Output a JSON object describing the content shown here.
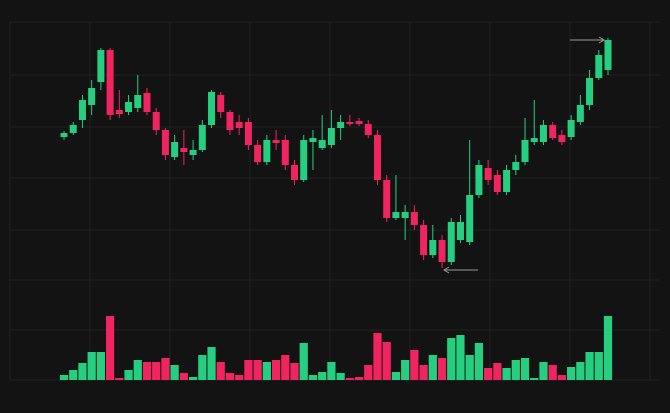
{
  "chart_data": {
    "type": "candlestick",
    "ylim": [
      0,
      280
    ],
    "volume_ylim": [
      0,
      100
    ],
    "up_color": "#26cf7f",
    "down_color": "#f0245f",
    "open": [
      153,
      157,
      170,
      185,
      208,
      240,
      180,
      178,
      182,
      197,
      178,
      160,
      133,
      142,
      135,
      140,
      165,
      195,
      178,
      168,
      168,
      145,
      128,
      150,
      150,
      125,
      110,
      148,
      142,
      145,
      162,
      168,
      169,
      166,
      155,
      110,
      72,
      72,
      78,
      65,
      35,
      50,
      28,
      50,
      48,
      95,
      122,
      115,
      98,
      120,
      128,
      148,
      148,
      165,
      155,
      153,
      168,
      185,
      212,
      220
    ],
    "high": [
      159,
      168,
      195,
      210,
      242,
      242,
      200,
      195,
      215,
      202,
      182,
      162,
      155,
      160,
      150,
      170,
      200,
      198,
      180,
      175,
      172,
      150,
      155,
      160,
      155,
      130,
      155,
      160,
      175,
      180,
      175,
      175,
      172,
      170,
      160,
      115,
      115,
      85,
      85,
      70,
      65,
      55,
      72,
      75,
      150,
      130,
      130,
      120,
      125,
      135,
      172,
      190,
      170,
      168,
      160,
      175,
      195,
      220,
      240,
      252
    ],
    "low": [
      150,
      155,
      162,
      175,
      200,
      170,
      172,
      175,
      178,
      175,
      155,
      130,
      130,
      125,
      130,
      138,
      162,
      172,
      155,
      155,
      140,
      125,
      125,
      140,
      120,
      105,
      108,
      120,
      140,
      142,
      150,
      164,
      164,
      152,
      105,
      68,
      70,
      50,
      60,
      30,
      32,
      22,
      25,
      47,
      45,
      92,
      105,
      95,
      95,
      115,
      125,
      145,
      145,
      150,
      145,
      150,
      165,
      180,
      210,
      215
    ],
    "close": [
      157,
      165,
      190,
      202,
      240,
      175,
      176,
      188,
      195,
      178,
      160,
      135,
      148,
      138,
      140,
      165,
      198,
      178,
      160,
      162,
      145,
      128,
      150,
      147,
      125,
      110,
      150,
      152,
      150,
      162,
      168,
      166,
      166,
      155,
      110,
      72,
      78,
      78,
      65,
      35,
      50,
      28,
      68,
      68,
      95,
      125,
      110,
      98,
      120,
      128,
      150,
      152,
      165,
      152,
      148,
      170,
      185,
      212,
      235,
      250
    ],
    "volume": [
      5,
      10,
      17,
      28,
      28,
      64,
      2,
      10,
      20,
      18,
      18,
      22,
      15,
      7,
      3,
      25,
      33,
      18,
      7,
      5,
      20,
      20,
      18,
      20,
      25,
      17,
      37,
      5,
      8,
      18,
      7,
      2,
      3,
      15,
      47,
      38,
      8,
      20,
      30,
      15,
      25,
      22,
      42,
      45,
      25,
      37,
      12,
      17,
      12,
      20,
      22,
      2,
      18,
      15,
      5,
      13,
      18,
      28,
      28,
      64
    ]
  }
}
